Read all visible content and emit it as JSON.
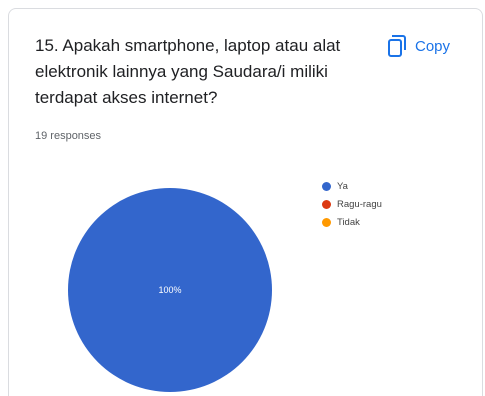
{
  "question": {
    "title": "15. Apakah smartphone, laptop atau alat elektronik lainnya yang Saudara/i miliki terdapat akses internet?",
    "responses_label": "19 responses"
  },
  "toolbar": {
    "copy_label": "Copy",
    "copy_icon": "copy-icon"
  },
  "chart_data": {
    "type": "pie",
    "categories": [
      "Ya",
      "Ragu-ragu",
      "Tidak"
    ],
    "values": [
      100,
      0,
      0
    ],
    "slice_labels": [
      "100%"
    ],
    "colors": [
      "#3366cc",
      "#dc3912",
      "#ff9900"
    ],
    "legend_position": "right"
  },
  "colors": {
    "accent": "#1a73e8"
  }
}
